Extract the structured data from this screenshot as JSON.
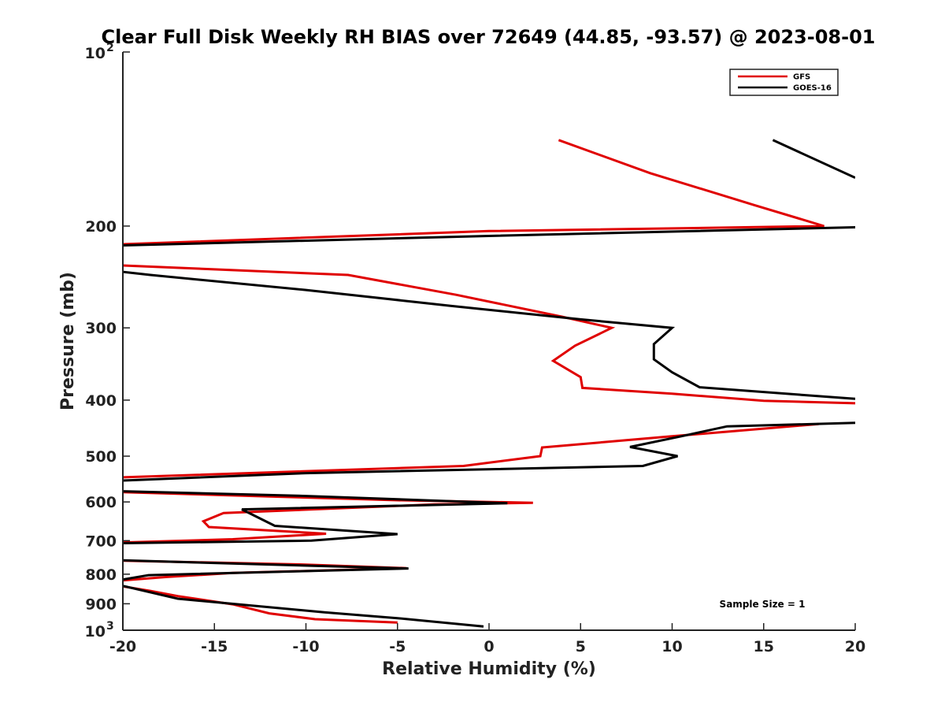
{
  "chart_data": {
    "type": "line",
    "title": "Clear Full Disk Weekly RH BIAS over 72649 (44.85, -93.57) @ 2023-08-01",
    "xlabel": "Relative Humidity (%)",
    "ylabel": "Pressure (mb)",
    "xlim": [
      -20,
      20
    ],
    "ylim": [
      100,
      1000
    ],
    "yscale": "log",
    "yreversed": true,
    "grid": false,
    "legend_position": "top-right",
    "x_ticks": [
      -20,
      -15,
      -10,
      -5,
      0,
      5,
      10,
      15,
      20
    ],
    "y_ticks": [
      {
        "value": 100,
        "base": "10",
        "exp": "2"
      },
      {
        "value": 200,
        "label": "200"
      },
      {
        "value": 300,
        "label": "300"
      },
      {
        "value": 400,
        "label": "400"
      },
      {
        "value": 500,
        "label": "500"
      },
      {
        "value": 600,
        "label": "600"
      },
      {
        "value": 700,
        "label": "700"
      },
      {
        "value": 800,
        "label": "800"
      },
      {
        "value": 900,
        "label": "900"
      },
      {
        "value": 1000,
        "base": "10",
        "exp": "3"
      }
    ],
    "annotation": "Sample Size = 1",
    "series": [
      {
        "name": "GFS",
        "color": "#e00000",
        "segments": [
          [
            [
              3.8,
              142
            ],
            [
              8.8,
              162
            ],
            [
              14.5,
              184
            ],
            [
              18.3,
              200
            ],
            [
              0,
              204
            ],
            [
              -20,
              215
            ]
          ],
          [
            [
              -20,
              234
            ],
            [
              -7.7,
              243
            ],
            [
              -1.8,
              263
            ],
            [
              4.0,
              287
            ],
            [
              6.7,
              300
            ],
            [
              4.7,
              322
            ],
            [
              3.5,
              342
            ],
            [
              5.0,
              365
            ],
            [
              5.1,
              381
            ],
            [
              10,
              390
            ],
            [
              15,
              401
            ],
            [
              20,
              405
            ]
          ],
          [
            [
              18,
              440
            ],
            [
              10,
              462
            ],
            [
              2.9,
              483
            ],
            [
              2.8,
              500
            ],
            [
              -1.4,
              520
            ],
            [
              -20,
              544
            ]
          ],
          [
            [
              -20,
              577
            ],
            [
              -12,
              587
            ],
            [
              -5,
              596
            ],
            [
              2.4,
              602
            ],
            [
              -3,
              606
            ],
            [
              -14.5,
              627
            ],
            [
              -15.6,
              648
            ],
            [
              -15.3,
              663
            ],
            [
              -8.9,
              681
            ],
            [
              -14,
              696
            ],
            [
              -20,
              705
            ]
          ],
          [
            [
              -20,
              758
            ],
            [
              -10,
              770
            ],
            [
              -4.5,
              781
            ],
            [
              -14,
              796
            ],
            [
              -17.6,
              809
            ],
            [
              -20,
              820
            ]
          ],
          [
            [
              -20,
              840
            ],
            [
              -18.5,
              855
            ],
            [
              -17,
              873
            ],
            [
              -14,
              902
            ],
            [
              -12,
              935
            ],
            [
              -9.5,
              957
            ],
            [
              -5,
              970
            ]
          ]
        ]
      },
      {
        "name": "GOES-16",
        "color": "#000000",
        "segments": [
          [
            [
              15.5,
              142
            ],
            [
              20,
              165
            ]
          ],
          [
            [
              20,
              201
            ],
            [
              0,
              208
            ],
            [
              -20,
              216
            ]
          ],
          [
            [
              -20,
              240
            ],
            [
              -18.5,
              243
            ],
            [
              -10,
              258
            ],
            [
              -2,
              275
            ],
            [
              5,
              290
            ],
            [
              10,
              300
            ],
            [
              9,
              320
            ],
            [
              9,
              340
            ],
            [
              10,
              358
            ],
            [
              11.5,
              380
            ],
            [
              20,
              398
            ]
          ],
          [
            [
              20,
              438
            ],
            [
              13,
              444
            ],
            [
              10.5,
              462
            ],
            [
              7.7,
              482
            ],
            [
              10.3,
              500
            ],
            [
              8.4,
              520
            ],
            [
              -10,
              535
            ],
            [
              -20,
              551
            ]
          ],
          [
            [
              -20,
              575
            ],
            [
              -10,
              586
            ],
            [
              1,
              603
            ],
            [
              -13.5,
              618
            ],
            [
              -11.7,
              660
            ],
            [
              -5,
              682
            ],
            [
              -9.7,
              700
            ],
            [
              -20,
              707
            ]
          ],
          [
            [
              -20,
              757
            ],
            [
              -4.4,
              782
            ],
            [
              -18.6,
              803
            ],
            [
              -20,
              817
            ]
          ],
          [
            [
              -20,
              838
            ],
            [
              -17,
              882
            ],
            [
              -9,
              931
            ],
            [
              -5,
              953
            ],
            [
              -0.3,
              985
            ]
          ]
        ]
      }
    ]
  }
}
